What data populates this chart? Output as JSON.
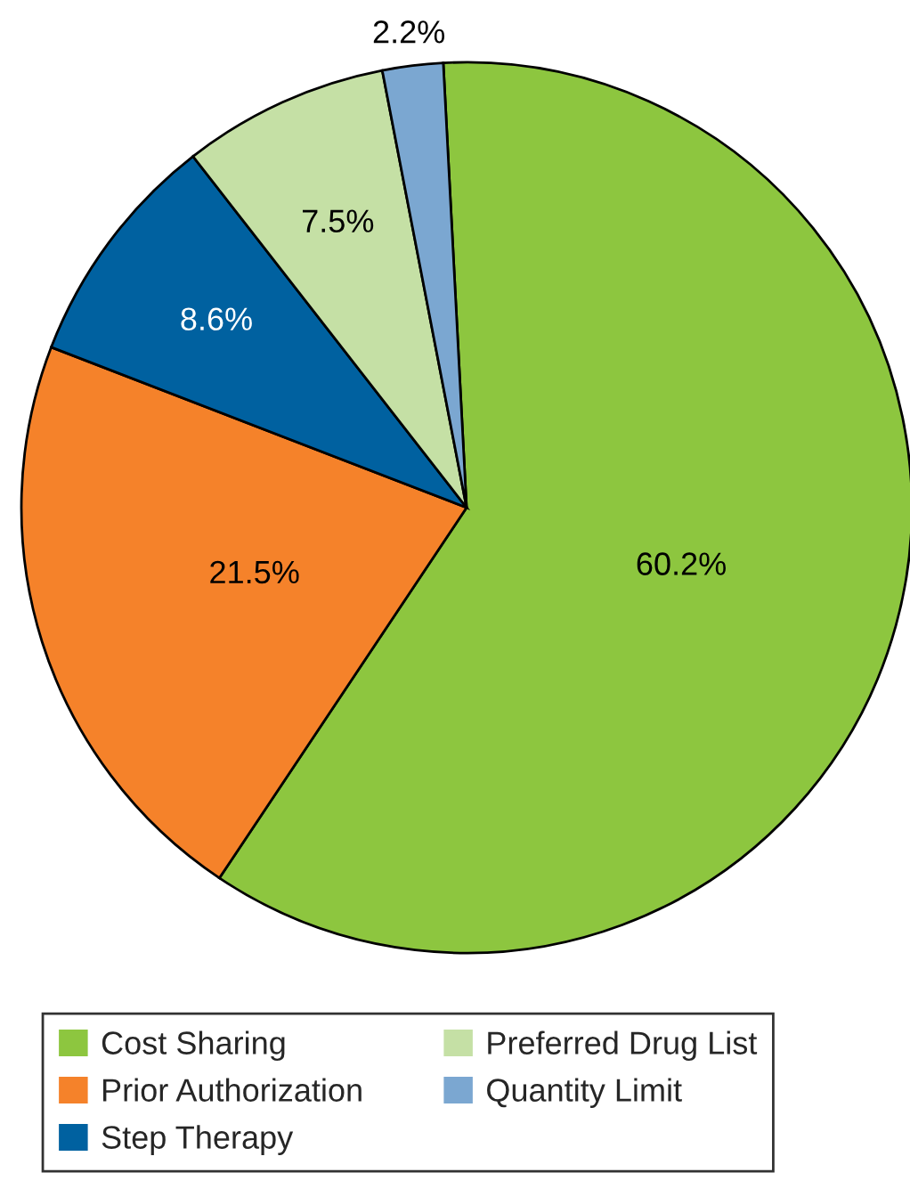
{
  "chart_data": {
    "type": "pie",
    "categories": [
      "Cost Sharing",
      "Prior Authorization",
      "Step Therapy",
      "Preferred Drug List",
      "Quantity Limit"
    ],
    "values": [
      60.2,
      21.5,
      8.6,
      7.5,
      2.2
    ],
    "colors": [
      "#8dc63f",
      "#f5822a",
      "#0061a0",
      "#c5e0a5",
      "#7ba7d1"
    ],
    "value_labels": [
      "60.2%",
      "21.5%",
      "8.6%",
      "7.5%",
      "2.2%"
    ],
    "legend": "bottom"
  }
}
